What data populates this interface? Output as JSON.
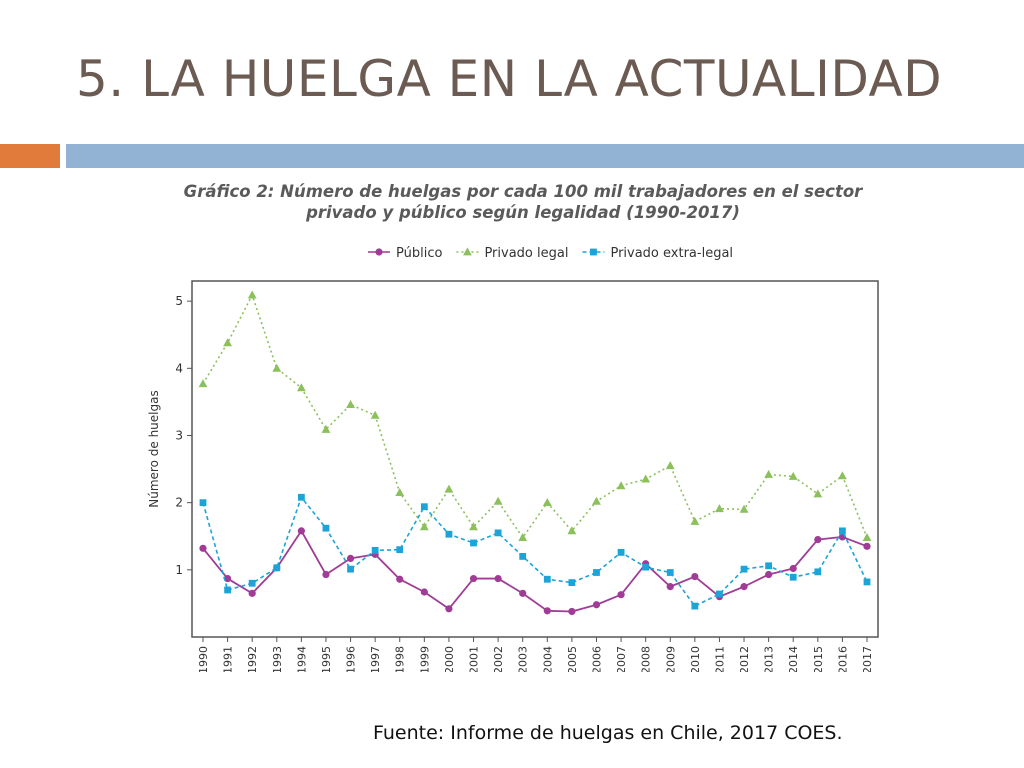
{
  "slide": {
    "title": "5. LA HUELGA EN LA ACTUALIDAD",
    "source": "Fuente: Informe de huelgas en Chile, 2017 COES.",
    "accent_orange": "#e07b3b",
    "accent_blue": "#93b3d4"
  },
  "chart_data": {
    "type": "line",
    "title": "Gráfico 2: Número de huelgas por cada 100 mil trabajadores en el sector",
    "subtitle": "privado y público según legalidad (1990-2017)",
    "xlabel": "",
    "ylabel": "Número de huelgas",
    "ylim": [
      0,
      5.3
    ],
    "yticks": [
      1,
      2,
      3,
      4,
      5
    ],
    "grid": false,
    "legend_position": "top",
    "categories": [
      "1990",
      "1991",
      "1992",
      "1993",
      "1994",
      "1995",
      "1996",
      "1997",
      "1998",
      "1999",
      "2000",
      "2001",
      "2002",
      "2003",
      "2004",
      "2005",
      "2006",
      "2007",
      "2008",
      "2009",
      "2010",
      "2011",
      "2012",
      "2013",
      "2014",
      "2015",
      "2016",
      "2017"
    ],
    "series": [
      {
        "name": "Público",
        "color": "#a03c96",
        "marker": "circle",
        "dash": "solid",
        "values": [
          1.32,
          0.87,
          0.65,
          1.03,
          1.58,
          0.93,
          1.17,
          1.23,
          0.86,
          0.67,
          0.42,
          0.87,
          0.87,
          0.65,
          0.39,
          0.38,
          0.48,
          0.63,
          1.09,
          0.75,
          0.9,
          0.6,
          0.75,
          0.93,
          1.02,
          1.45,
          1.49,
          1.35
        ]
      },
      {
        "name": "Privado legal",
        "color": "#8cc05c",
        "marker": "triangle",
        "dash": "dotted",
        "values": [
          3.77,
          4.38,
          5.09,
          4.0,
          3.71,
          3.09,
          3.46,
          3.3,
          2.15,
          1.64,
          2.2,
          1.64,
          2.02,
          1.48,
          2.0,
          1.58,
          2.02,
          2.25,
          2.35,
          2.55,
          1.72,
          1.91,
          1.9,
          2.42,
          2.39,
          2.13,
          2.4,
          1.48
        ]
      },
      {
        "name": "Privado extra-legal",
        "color": "#1ca4d8",
        "marker": "square",
        "dash": "dashed",
        "values": [
          2.0,
          0.7,
          0.8,
          1.03,
          2.08,
          1.62,
          1.01,
          1.29,
          1.3,
          1.94,
          1.53,
          1.4,
          1.55,
          1.2,
          0.86,
          0.81,
          0.96,
          1.26,
          1.04,
          0.96,
          0.46,
          0.64,
          1.01,
          1.06,
          0.89,
          0.97,
          1.58,
          0.82
        ]
      }
    ]
  }
}
